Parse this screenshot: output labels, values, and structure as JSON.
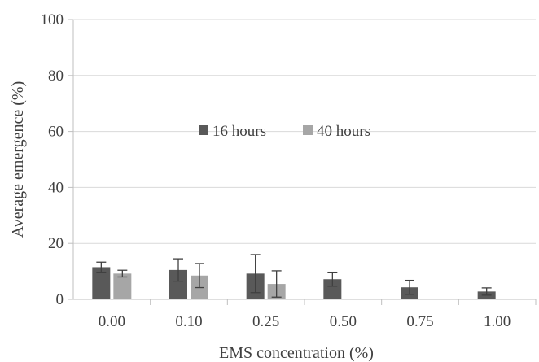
{
  "chart_data": {
    "type": "bar",
    "xlabel": "EMS concentration (%)",
    "ylabel": "Average emergence (%)",
    "ylim": [
      0,
      100
    ],
    "y_ticks": [
      "0",
      "20",
      "40",
      "60",
      "80",
      "100"
    ],
    "categories": [
      "0.00",
      "0.10",
      "0.25",
      "0.50",
      "0.75",
      "1.00"
    ],
    "grid": true,
    "legend_position": "center",
    "series": [
      {
        "name": "16 hours",
        "color": "#595959",
        "values": [
          11.5,
          10.5,
          9.2,
          7.2,
          4.3,
          2.8
        ],
        "errors": [
          1.8,
          4.0,
          6.8,
          2.5,
          2.5,
          1.3
        ]
      },
      {
        "name": "40 hours",
        "color": "#a6a6a6",
        "values": [
          9.2,
          8.5,
          5.5,
          0.0,
          0.0,
          0.0
        ],
        "errors": [
          1.2,
          4.3,
          4.7,
          0.0,
          0.0,
          0.0
        ]
      }
    ]
  }
}
